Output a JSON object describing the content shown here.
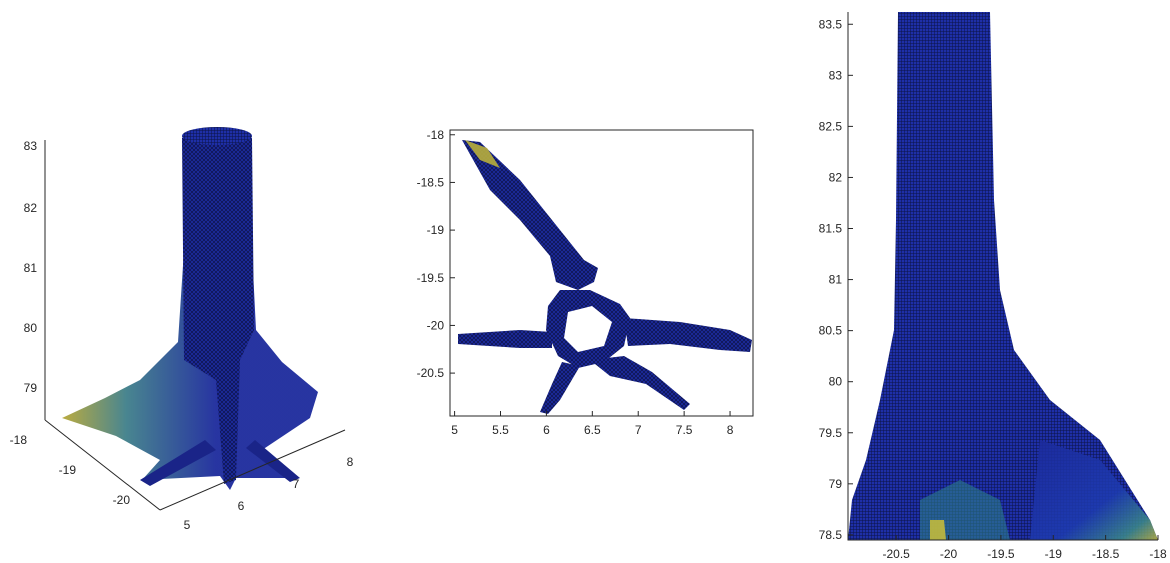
{
  "chart_data": [
    {
      "type": "3d-surface",
      "view": "perspective",
      "z_ticks": [
        "79",
        "80",
        "81",
        "82",
        "83"
      ],
      "y_ticks": [
        "-18",
        "-19",
        "-20"
      ],
      "x_ticks": [
        "5",
        "6",
        "7",
        "8"
      ],
      "colormap": [
        "#1a237e",
        "#2945c8",
        "#2fa3a0",
        "#c8c23c"
      ]
    },
    {
      "type": "3d-surface",
      "view": "top",
      "x_ticks": [
        "5",
        "5.5",
        "6",
        "6.5",
        "7",
        "7.5",
        "8"
      ],
      "y_ticks": [
        "-18",
        "-18.5",
        "-19",
        "-19.5",
        "-20",
        "-20.5"
      ],
      "xlim": [
        4.95,
        8.25
      ],
      "ylim": [
        -20.95,
        -17.95
      ]
    },
    {
      "type": "3d-surface",
      "view": "side",
      "x_ticks": [
        "-20.5",
        "-20",
        "-19.5",
        "-19",
        "-18.5",
        "-18"
      ],
      "y_ticks": [
        "78.5",
        "79",
        "79.5",
        "80",
        "80.5",
        "81",
        "81.5",
        "82",
        "82.5",
        "83",
        "83.5"
      ],
      "xlim": [
        -20.96,
        -18
      ],
      "ylim": [
        78.45,
        83.62
      ]
    }
  ]
}
